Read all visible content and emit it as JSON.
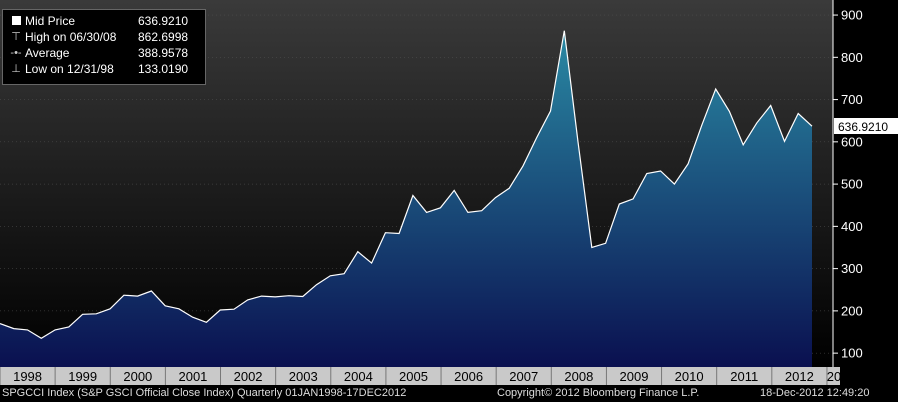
{
  "chart_data": {
    "type": "area",
    "ylim": [
      50,
      950
    ],
    "y_ticks": [
      100,
      200,
      300,
      400,
      500,
      600,
      700,
      800,
      900
    ],
    "x_tick_labels": [
      "1998",
      "1999",
      "2000",
      "2001",
      "2002",
      "2003",
      "2004",
      "2005",
      "2006",
      "2007",
      "2008",
      "2009",
      "2010",
      "2011",
      "2012",
      "20"
    ],
    "last_value_label": "636.9210",
    "series": [
      {
        "values": [
          170,
          158,
          155,
          135,
          155,
          162,
          192,
          193,
          205,
          237,
          235,
          247,
          212,
          205,
          185,
          173,
          202,
          204,
          226,
          235,
          233,
          236,
          234,
          262,
          283,
          288,
          340,
          313,
          385,
          383,
          473,
          433,
          444,
          485,
          433,
          437,
          468,
          490,
          543,
          610,
          673,
          863,
          600,
          350,
          360,
          453,
          465,
          525,
          531,
          500,
          548,
          640,
          725,
          672,
          593,
          645,
          686,
          601,
          667,
          637
        ]
      }
    ]
  },
  "legend": {
    "items": [
      {
        "icon": "mid-price-square-icon",
        "label": "Mid Price",
        "value": "636.9210"
      },
      {
        "icon": "high-marker-icon",
        "label": "High on 06/30/08",
        "value": "862.6998"
      },
      {
        "icon": "average-line-icon",
        "label": "Average",
        "value": "388.9578"
      },
      {
        "icon": "low-marker-icon",
        "label": "Low on 12/31/98",
        "value": "133.0190"
      }
    ]
  },
  "footer": {
    "index_description": "SPGCCI Index (S&P GSCI Official Close Index)  Quarterly 01JAN1998-17DEC2012",
    "copyright": "Copyright© 2012 Bloomberg Finance L.P.",
    "timestamp": "18-Dec-2012 12:49:20"
  },
  "colors": {
    "background_top": "#3a3a3a",
    "background_bottom": "#000000",
    "area_top": "#2a8aa4",
    "area_bottom": "#0a1050",
    "line": "#ffffff",
    "axis_text": "#ffffff",
    "value_tag_bg": "#ffffff",
    "value_tag_text": "#000000"
  }
}
